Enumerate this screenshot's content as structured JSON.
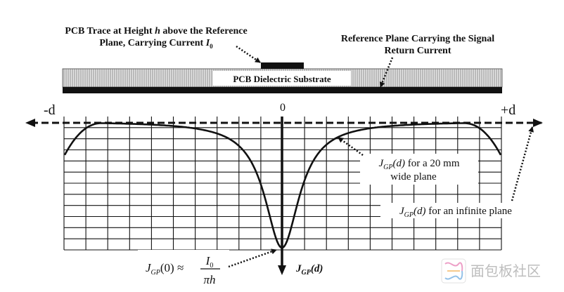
{
  "labels": {
    "trace_line1_a": "PCB Trace at Height ",
    "trace_line1_h": "h",
    "trace_line1_b": " above the Reference",
    "trace_line2": "Plane, Carrying Current ",
    "trace_current_symbol": "I",
    "trace_current_sub": "0",
    "ref_plane_line1": "Reference Plane Carrying the Signal",
    "ref_plane_line2": "Return Current",
    "substrate": "PCB Dielectric Substrate",
    "axis_left": "-d",
    "axis_center": "0",
    "axis_right": "+d",
    "curve_20mm_fn": "J",
    "curve_20mm_sub": "GP",
    "curve_20mm_arg": "(d)",
    "curve_20mm_text1": " for a 20 mm",
    "curve_20mm_text2": "wide plane",
    "curve_inf_fn": "J",
    "curve_inf_sub": "GP",
    "curve_inf_arg": "(d)",
    "curve_inf_text": " for an infinite plane",
    "formula_lhs_fn": "J",
    "formula_lhs_sub": "GP",
    "formula_lhs_arg": "(0) ≈",
    "formula_num": "I",
    "formula_num_sub": "0",
    "formula_den": "πh",
    "yaxis_fn": "J",
    "yaxis_sub": "GP",
    "yaxis_arg": "(d)",
    "watermark": "面包板社区"
  },
  "colors": {
    "ink": "#111111",
    "substrate_hatch": "#9a9a9a",
    "substrate_fill": "#d8d8d8",
    "grid": "#000000",
    "watermark": "#bfbfbf"
  }
}
